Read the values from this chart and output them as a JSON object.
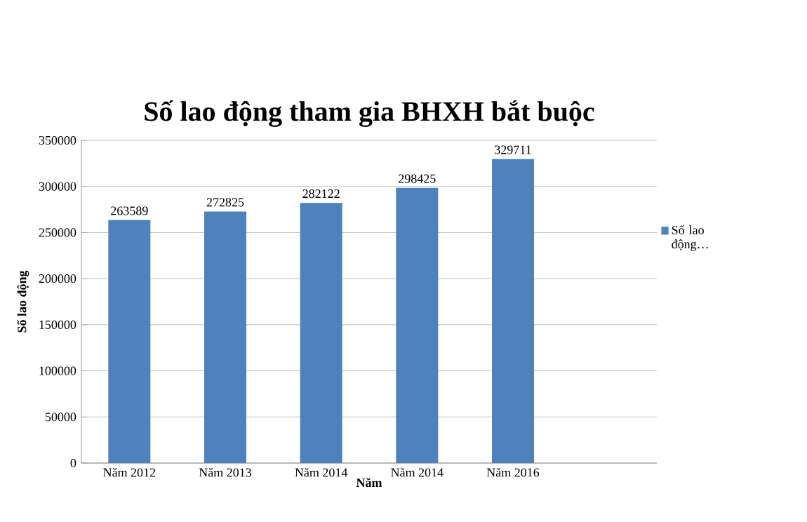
{
  "chart_data": {
    "type": "bar",
    "title": "Số lao động tham gia BHXH bắt buộc",
    "xlabel": "Năm",
    "ylabel": "Số lao động",
    "categories": [
      "Năm 2012",
      "Năm 2013",
      "Năm 2014",
      "Năm 2014",
      "Năm 2016",
      null
    ],
    "series": [
      {
        "name": "Số lao động…",
        "color": "#4f81bd",
        "values": [
          263589,
          272825,
          282122,
          298425,
          329711,
          null
        ]
      }
    ],
    "ylim": [
      0,
      350000
    ],
    "yticks": [
      0,
      50000,
      100000,
      150000,
      200000,
      250000,
      300000,
      350000
    ],
    "grid": "y",
    "legend": "right",
    "data_labels": true
  }
}
